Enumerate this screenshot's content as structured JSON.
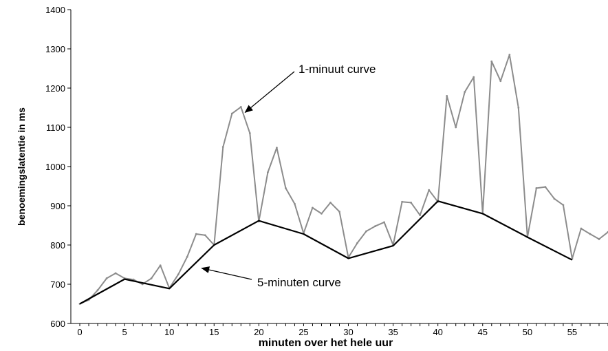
{
  "chart_data": {
    "type": "line",
    "title": "",
    "xlabel": "minuten over het hele uur",
    "ylabel": "benoemingslatentie in ms",
    "xlim": [
      -1,
      59
    ],
    "ylim": [
      600,
      1400
    ],
    "xticks": [
      0,
      5,
      10,
      15,
      20,
      25,
      30,
      35,
      40,
      45,
      50,
      55
    ],
    "yticks": [
      600,
      700,
      800,
      900,
      1000,
      1100,
      1200,
      1300,
      1400
    ],
    "grid": false,
    "legend": "none",
    "series": [
      {
        "name": "1-minuut curve",
        "color": "#8c8c8c",
        "x": [
          0,
          1,
          2,
          3,
          4,
          5,
          6,
          7,
          8,
          9,
          10,
          11,
          12,
          13,
          14,
          15,
          16,
          17,
          18,
          19,
          20,
          21,
          22,
          23,
          24,
          25,
          26,
          27,
          28,
          29,
          30,
          31,
          32,
          33,
          34,
          35,
          36,
          37,
          38,
          39,
          40,
          41,
          42,
          43,
          44,
          45,
          46,
          47,
          48,
          49,
          50,
          51,
          52,
          53,
          54,
          55,
          56,
          57,
          58,
          59
        ],
        "y": [
          650,
          660,
          685,
          715,
          728,
          715,
          712,
          700,
          715,
          748,
          690,
          725,
          770,
          828,
          825,
          800,
          1050,
          1135,
          1152,
          1085,
          860,
          985,
          1048,
          945,
          905,
          830,
          895,
          880,
          908,
          885,
          768,
          805,
          835,
          848,
          858,
          800,
          910,
          908,
          876,
          940,
          910,
          1180,
          1100,
          1190,
          1228,
          880,
          1268,
          1218,
          1285,
          1150,
          820,
          945,
          948,
          918,
          902,
          765,
          842,
          828,
          815,
          833
        ]
      },
      {
        "name": "5-minuten curve",
        "color": "#000000",
        "x": [
          0,
          5,
          10,
          15,
          20,
          25,
          30,
          35,
          40,
          45,
          50,
          55
        ],
        "y": [
          650,
          713,
          689,
          800,
          862,
          828,
          766,
          798,
          912,
          880,
          820,
          762
        ]
      }
    ],
    "annotations": [
      {
        "text": "1-minuut curve",
        "target_series": 0,
        "x": 18,
        "y": 1152
      },
      {
        "text": "5-minuten curve",
        "target_series": 1,
        "x": 13,
        "y": 748
      }
    ]
  }
}
